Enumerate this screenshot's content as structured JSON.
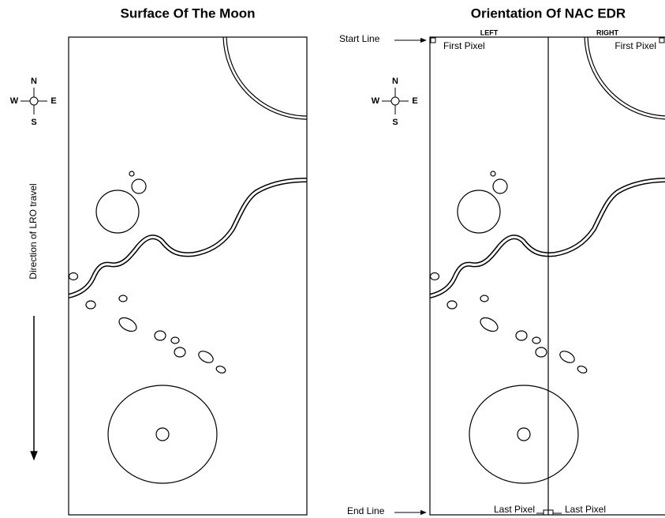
{
  "left_panel": {
    "title": "Surface Of The Moon",
    "compass": {
      "n": "N",
      "w": "W",
      "e": "E",
      "s": "S"
    },
    "direction_label": "Direction of LRO travel"
  },
  "right_panel": {
    "title": "Orientation Of NAC EDR",
    "compass": {
      "n": "N",
      "w": "W",
      "e": "E",
      "s": "S"
    },
    "start_line": "Start Line",
    "end_line": "End Line",
    "left_label": "LEFT",
    "right_label": "RIGHT",
    "first_pixel_left": "First Pixel",
    "first_pixel_right": "First Pixel",
    "last_pixel_left": "Last Pixel",
    "last_pixel_right": "Last Pixel"
  }
}
